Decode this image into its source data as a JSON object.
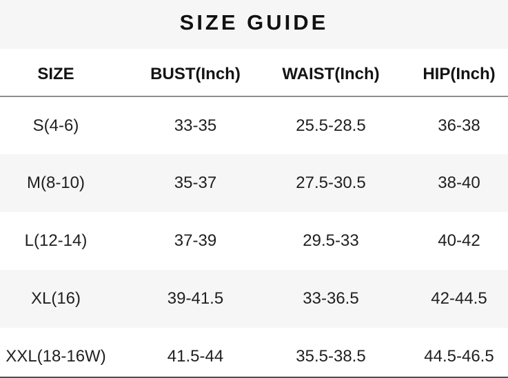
{
  "title": "SIZE GUIDE",
  "table": {
    "columns": [
      "SIZE",
      "BUST(Inch)",
      "WAIST(Inch)",
      "HIP(Inch)"
    ],
    "rows": [
      [
        "S(4-6)",
        "33-35",
        "25.5-28.5",
        "36-38"
      ],
      [
        "M(8-10)",
        "35-37",
        "27.5-30.5",
        "38-40"
      ],
      [
        "L(12-14)",
        "37-39",
        "29.5-33",
        "40-42"
      ],
      [
        "XL(16)",
        "39-41.5",
        "33-36.5",
        "42-44.5"
      ],
      [
        "XXL(18-16W)",
        "41.5-44",
        "35.5-38.5",
        "44.5-46.5"
      ]
    ]
  },
  "colors": {
    "title_band_bg": "#f6f6f6",
    "zebra_row_bg": "#f6f6f6",
    "header_rule": "#8d8d8d",
    "bottom_divider": "#4f4f4f",
    "text": "#1a1a1a"
  }
}
